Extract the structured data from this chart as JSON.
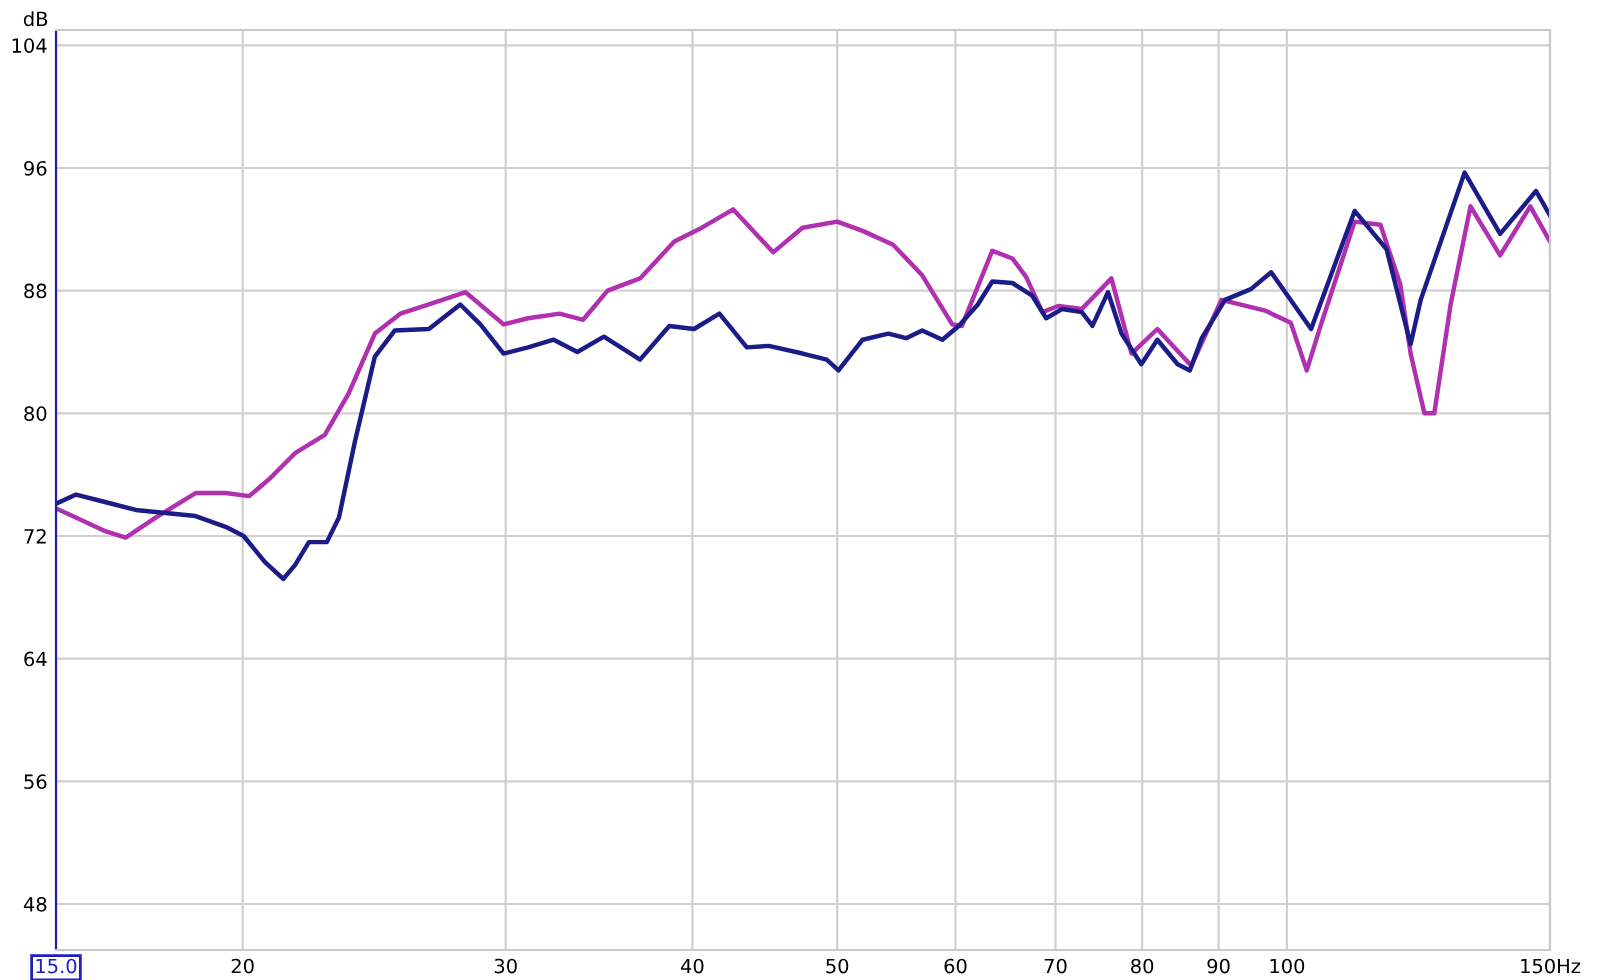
{
  "chart_data": {
    "type": "line",
    "ylabel": "dB",
    "log": "x",
    "grid": true,
    "xlim": [
      15,
      150
    ],
    "ylim": [
      45,
      105
    ],
    "xticks": [
      {
        "value": 15,
        "label": "15.0"
      },
      20,
      30,
      40,
      50,
      60,
      70,
      80,
      90,
      100,
      {
        "value": 150,
        "label": "150Hz"
      }
    ],
    "yticks": [
      48,
      56,
      64,
      72,
      80,
      88,
      96,
      104
    ],
    "series": [
      {
        "color": "#b030b0",
        "x": [
          15.0,
          16.2,
          16.7,
          17.49,
          18.6,
          19.48,
          20.2,
          20.83,
          21.68,
          22.7,
          23.55,
          24.52,
          25.5,
          26.65,
          28.2,
          29.9,
          31.05,
          32.6,
          33.8,
          35.1,
          36.9,
          38.9,
          40.4,
          42.6,
          45.3,
          47.4,
          50.0,
          52.0,
          54.5,
          57.0,
          59.7,
          60.6,
          63.5,
          65.5,
          66.9,
          68.6,
          70.3,
          72.9,
          76.3,
          78.7,
          81.9,
          86.3,
          90.4,
          96.7,
          100.6,
          103.1,
          105.4,
          111.0,
          115.5,
          119.1,
          121.0,
          123.6,
          125.5,
          128.7,
          132.7,
          138.9,
          145.5,
          150
        ],
        "values": [
          73.8,
          72.3,
          71.9,
          73.2,
          74.8,
          74.8,
          74.6,
          75.7,
          77.4,
          78.6,
          81.3,
          85.2,
          86.5,
          87.1,
          87.9,
          85.8,
          86.2,
          86.5,
          86.1,
          88.0,
          88.8,
          91.2,
          92.0,
          93.3,
          90.5,
          92.1,
          92.5,
          91.9,
          91.0,
          89.0,
          85.8,
          85.7,
          90.6,
          90.1,
          88.9,
          86.6,
          87.0,
          86.8,
          88.8,
          83.9,
          85.5,
          83.1,
          87.4,
          86.7,
          85.9,
          82.8,
          85.8,
          92.5,
          92.3,
          88.4,
          83.9,
          80.0,
          80.0,
          87.1,
          93.5,
          90.3,
          93.5,
          91.2
        ]
      },
      {
        "color": "#1c1c88",
        "x": [
          15.0,
          15.47,
          16.2,
          16.96,
          17.76,
          18.6,
          19.48,
          20.03,
          20.7,
          21.29,
          21.68,
          22.15,
          22.77,
          23.2,
          23.77,
          24.52,
          25.28,
          26.65,
          27.97,
          28.85,
          29.9,
          31.05,
          32.3,
          33.5,
          34.9,
          36.9,
          38.6,
          40.1,
          41.7,
          43.5,
          45.0,
          47.4,
          49.2,
          50.1,
          52.0,
          54.1,
          55.6,
          57.0,
          58.8,
          60.3,
          62.1,
          63.5,
          65.5,
          67.5,
          69.0,
          70.7,
          72.9,
          74.1,
          75.9,
          77.5,
          79.9,
          81.9,
          84.5,
          86.1,
          87.7,
          90.9,
          94.6,
          97.6,
          103.8,
          111.0,
          116.6,
          121.0,
          122.9,
          131.5,
          138.9,
          146.8,
          150
        ],
        "values": [
          74.1,
          74.7,
          74.2,
          73.7,
          73.5,
          73.3,
          72.6,
          72.0,
          70.3,
          69.2,
          70.1,
          71.6,
          71.6,
          73.2,
          78.1,
          83.7,
          85.4,
          85.5,
          87.1,
          85.8,
          83.9,
          84.3,
          84.8,
          84.0,
          85.0,
          83.5,
          85.7,
          85.5,
          86.5,
          84.3,
          84.4,
          83.9,
          83.5,
          82.8,
          84.8,
          85.2,
          84.9,
          85.4,
          84.8,
          85.7,
          87.1,
          88.6,
          88.5,
          87.7,
          86.2,
          86.8,
          86.6,
          85.7,
          87.9,
          85.2,
          83.2,
          84.8,
          83.2,
          82.8,
          84.9,
          87.4,
          88.1,
          89.2,
          85.5,
          93.2,
          90.7,
          84.5,
          87.4,
          95.7,
          91.7,
          94.5,
          92.9
        ]
      }
    ]
  }
}
